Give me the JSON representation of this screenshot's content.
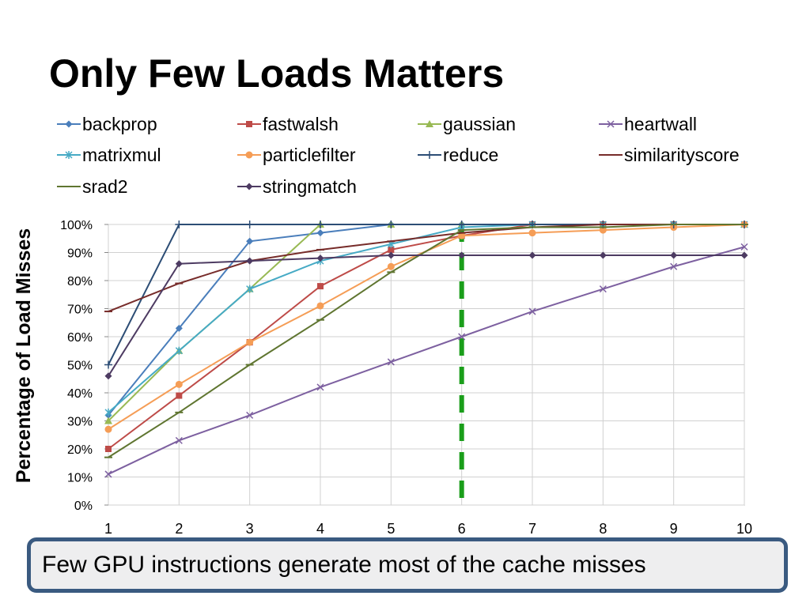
{
  "slide": {
    "title": "Only Few Loads Matters",
    "callout": "Few GPU instructions generate most of the cache misses"
  },
  "chart_data": {
    "type": "line",
    "title": "",
    "xlabel": "",
    "ylabel": "Percentage of Load Misses",
    "x": [
      1,
      2,
      3,
      4,
      5,
      6,
      7,
      8,
      9,
      10
    ],
    "x_tick_labels": [
      "1",
      "2",
      "3",
      "4",
      "5",
      "6",
      "7",
      "8",
      "9",
      "10"
    ],
    "y_tick_labels": [
      "0%",
      "10%",
      "20%",
      "30%",
      "40%",
      "50%",
      "60%",
      "70%",
      "80%",
      "90%",
      "100%"
    ],
    "ylim": [
      0,
      100
    ],
    "grid": true,
    "legend_position": "top",
    "annotation": {
      "type": "vertical-dashed-line",
      "x": 6,
      "color": "#1a9e1a"
    },
    "series": [
      {
        "name": "backprop",
        "color": "#4a7ebb",
        "marker": "diamond",
        "values": [
          32,
          63,
          94,
          97,
          100,
          100,
          100,
          100,
          100,
          100
        ]
      },
      {
        "name": "fastwalsh",
        "color": "#be4b48",
        "marker": "square",
        "values": [
          20,
          39,
          58,
          78,
          91,
          96,
          100,
          100,
          100,
          100
        ]
      },
      {
        "name": "gaussian",
        "color": "#98b954",
        "marker": "triangle",
        "values": [
          30,
          55,
          77,
          100,
          100,
          100,
          100,
          100,
          100,
          100
        ]
      },
      {
        "name": "heartwall",
        "color": "#7d60a0",
        "marker": "x",
        "values": [
          11,
          23,
          32,
          42,
          51,
          60,
          69,
          77,
          85,
          92
        ]
      },
      {
        "name": "matrixmul",
        "color": "#46aac5",
        "marker": "star",
        "values": [
          33,
          55,
          77,
          87,
          93,
          99,
          100,
          100,
          100,
          100
        ]
      },
      {
        "name": "particlefilter",
        "color": "#f59d56",
        "marker": "circle",
        "values": [
          27,
          43,
          58,
          71,
          85,
          96,
          97,
          98,
          99,
          100
        ]
      },
      {
        "name": "reduce",
        "color": "#2c4d75",
        "marker": "plus",
        "values": [
          50,
          100,
          100,
          100,
          100,
          100,
          100,
          100,
          100,
          100
        ]
      },
      {
        "name": "similarityscore",
        "color": "#772c2a",
        "marker": "dash",
        "values": [
          69,
          79,
          87,
          91,
          94,
          97,
          99,
          100,
          100,
          100
        ]
      },
      {
        "name": "srad2",
        "color": "#5f7530",
        "marker": "dash",
        "values": [
          17,
          33,
          50,
          66,
          83,
          98,
          99,
          99,
          100,
          100
        ]
      },
      {
        "name": "stringmatch",
        "color": "#4d3b62",
        "marker": "diamond",
        "values": [
          46,
          86,
          87,
          88,
          89,
          89,
          89,
          89,
          89,
          89
        ]
      }
    ]
  }
}
